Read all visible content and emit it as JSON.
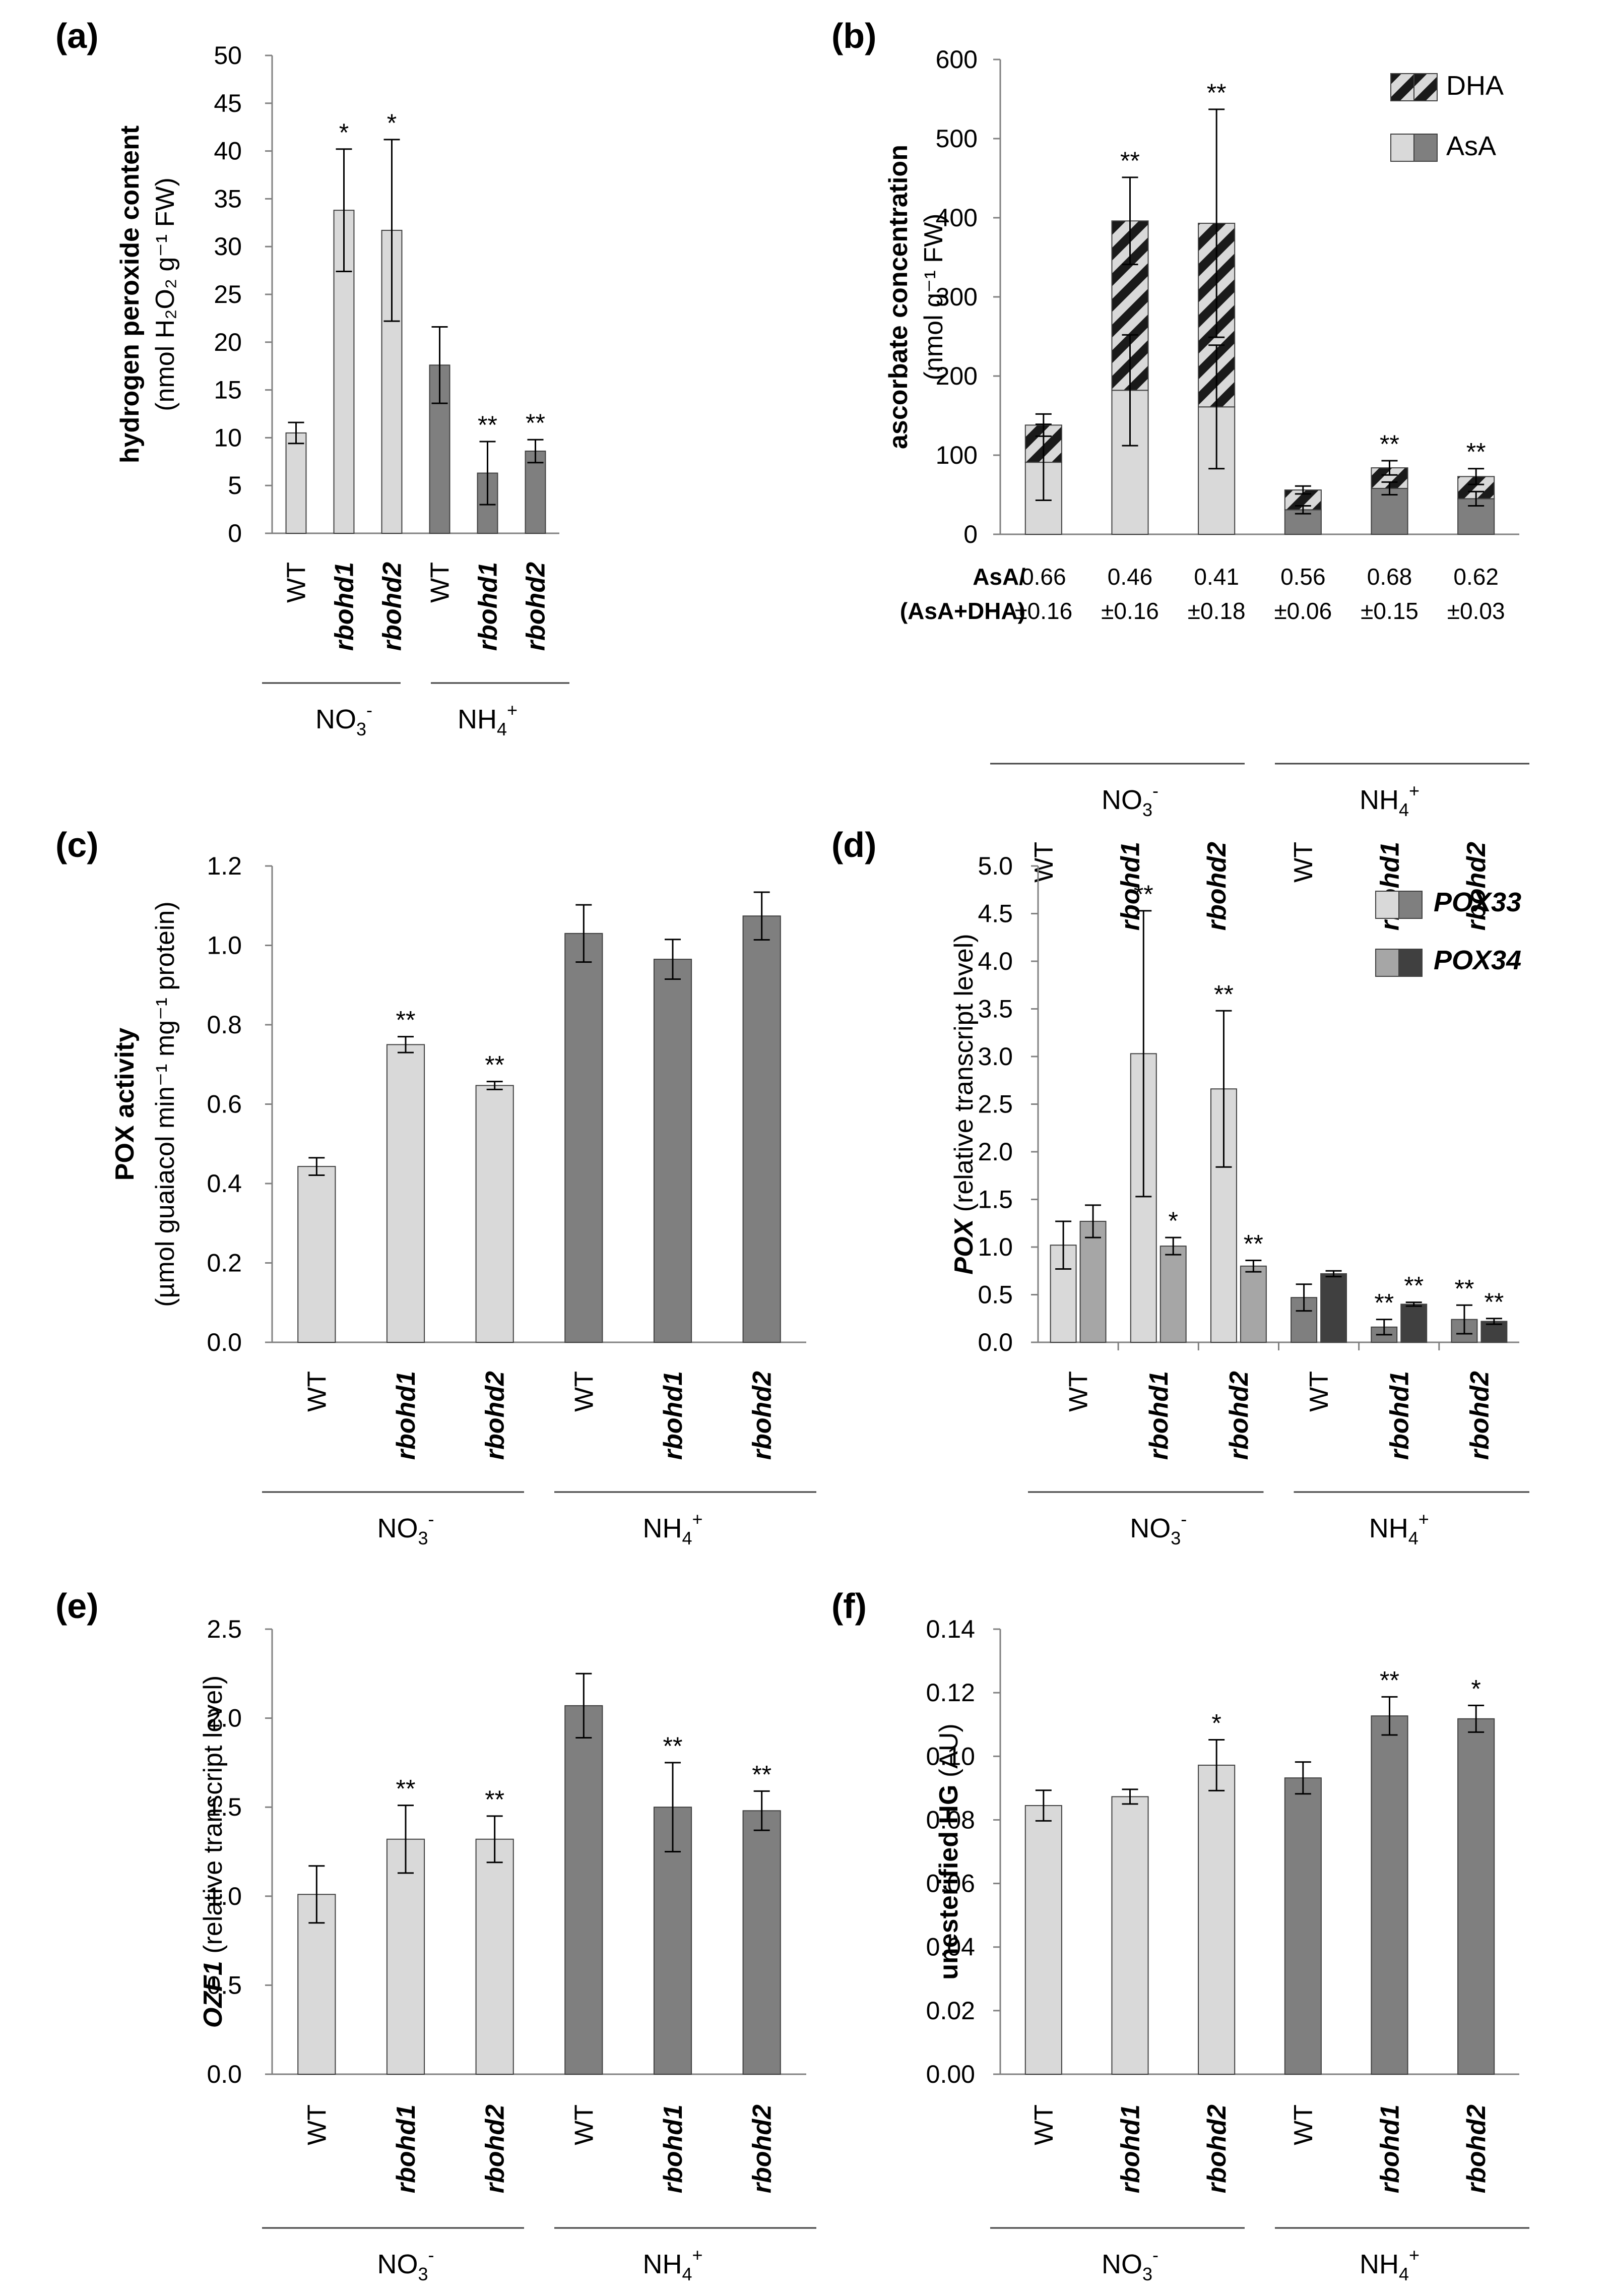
{
  "colors": {
    "light": "#d9d9d9",
    "dark": "#7f7f7f",
    "mid": "#a6a6a6",
    "darkest": "#404040",
    "stroke": "#404040"
  },
  "categories": [
    "WT",
    "rbohd1",
    "rbohd2",
    "WT",
    "rbohd1",
    "rbohd2"
  ],
  "groups": {
    "no3_base": "NO",
    "no3_sub": "3",
    "no3_sup": "-",
    "nh4_base": "NH",
    "nh4_sub": "4",
    "nh4_sup": "+"
  },
  "chart_data": [
    {
      "id": "a",
      "panel_label": "(a)",
      "type": "bar",
      "ylabel_bold": "hydrogen peroxide content",
      "ylabel_unit": "(nmol H₂O₂ g⁻¹ FW)",
      "ylim": [
        0,
        50
      ],
      "yticks": [
        "0",
        "5",
        "10",
        "15",
        "20",
        "25",
        "30",
        "35",
        "40",
        "45",
        "50"
      ],
      "tick_step": 5,
      "values": [
        10.5,
        33.8,
        31.7,
        17.6,
        6.3,
        8.6
      ],
      "errors": [
        1.1,
        6.4,
        9.5,
        4.0,
        3.3,
        1.2
      ],
      "significance": [
        "",
        "*",
        "*",
        "",
        "**",
        "**"
      ]
    },
    {
      "id": "b",
      "panel_label": "(b)",
      "type": "bar",
      "stacked": true,
      "ylabel_bold": "ascorbate concentration",
      "ylabel_unit": "(nmol g⁻¹ FW)",
      "ylim": [
        0,
        600
      ],
      "yticks": [
        "0",
        "100",
        "200",
        "300",
        "400",
        "500",
        "600"
      ],
      "tick_step": 100,
      "series": [
        {
          "name": "AsA",
          "values": [
            91,
            182,
            161,
            31,
            58,
            45
          ]
        },
        {
          "name": "DHA",
          "values": [
            47,
            214,
            232,
            25,
            26,
            28
          ]
        }
      ],
      "totals": [
        138,
        396,
        393,
        56,
        84,
        73
      ],
      "errors": [
        14,
        55,
        144,
        5,
        9,
        10
      ],
      "asa_errors": [
        48,
        70,
        78,
        5,
        8,
        9
      ],
      "significance": [
        "",
        "**",
        "**",
        "",
        "**",
        "**"
      ],
      "legend": [
        "DHA",
        "AsA"
      ],
      "ratio_label_1": "AsA/",
      "ratio_label_2": "(AsA+DHA)",
      "ratio_means": [
        "0.66",
        "0.46",
        "0.41",
        "0.56",
        "0.68",
        "0.62"
      ],
      "ratio_sds": [
        "±0.16",
        "±0.16",
        "±0.18",
        "±0.06",
        "±0.15",
        "±0.03"
      ]
    },
    {
      "id": "c",
      "panel_label": "(c)",
      "type": "bar",
      "ylabel_bold": "POX activity",
      "ylabel_unit": "(µmol guaiacol min⁻¹ mg⁻¹ protein)",
      "ylim": [
        0,
        1.2
      ],
      "yticks": [
        "0.0",
        "0.2",
        "0.4",
        "0.6",
        "0.8",
        "1.0",
        "1.2"
      ],
      "tick_step": 0.2,
      "values": [
        0.443,
        0.75,
        0.647,
        1.03,
        0.965,
        1.074
      ],
      "errors": [
        0.022,
        0.02,
        0.01,
        0.072,
        0.05,
        0.06
      ],
      "significance": [
        "",
        "**",
        "**",
        "",
        "",
        ""
      ]
    },
    {
      "id": "d",
      "panel_label": "(d)",
      "type": "bar",
      "grouped": true,
      "ylabel_bold": "POX",
      "ylabel_unit": "(relative transcript level)",
      "ylim": [
        0,
        5.0
      ],
      "yticks": [
        "0.0",
        "0.5",
        "1.0",
        "1.5",
        "2.0",
        "2.5",
        "3.0",
        "3.5",
        "4.0",
        "4.5",
        "5.0"
      ],
      "tick_step": 0.5,
      "series": [
        {
          "name": "POX33",
          "values": [
            1.02,
            3.03,
            2.66,
            0.47,
            0.16,
            0.24
          ],
          "errors": [
            0.25,
            1.5,
            0.82,
            0.14,
            0.08,
            0.15
          ],
          "significance": [
            "",
            "**",
            "**",
            "",
            "**",
            "**"
          ]
        },
        {
          "name": "POX34",
          "values": [
            1.27,
            1.01,
            0.8,
            0.72,
            0.4,
            0.22
          ],
          "errors": [
            0.17,
            0.09,
            0.06,
            0.03,
            0.02,
            0.03
          ],
          "significance": [
            "",
            "*",
            "**",
            "",
            "**",
            "**"
          ]
        }
      ],
      "legend": [
        "POX33",
        "POX34"
      ]
    },
    {
      "id": "e",
      "panel_label": "(e)",
      "type": "bar",
      "ylabel_bold": "OZF1",
      "ylabel_unit": "(relative transcript level)",
      "ylim": [
        0,
        2.5
      ],
      "yticks": [
        "0.0",
        "0.5",
        "1.0",
        "1.5",
        "2.0",
        "2.5"
      ],
      "tick_step": 0.5,
      "values": [
        1.01,
        1.32,
        1.32,
        2.07,
        1.5,
        1.48
      ],
      "errors": [
        0.16,
        0.19,
        0.13,
        0.18,
        0.25,
        0.11
      ],
      "significance": [
        "",
        "**",
        "**",
        "",
        "**",
        "**"
      ]
    },
    {
      "id": "f",
      "panel_label": "(f)",
      "type": "bar",
      "ylabel_bold": "unesterified HG",
      "ylabel_unit": "(AU)",
      "ylim": [
        0,
        0.14
      ],
      "yticks": [
        "0.00",
        "0.02",
        "0.04",
        "0.06",
        "0.08",
        "0.10",
        "0.12",
        "0.14"
      ],
      "tick_step": 0.02,
      "values": [
        0.0845,
        0.0873,
        0.0972,
        0.0932,
        0.1127,
        0.1118
      ],
      "errors": [
        0.0048,
        0.0023,
        0.008,
        0.005,
        0.006,
        0.0042
      ],
      "significance": [
        "",
        "",
        "*",
        "",
        "**",
        "*"
      ]
    }
  ]
}
